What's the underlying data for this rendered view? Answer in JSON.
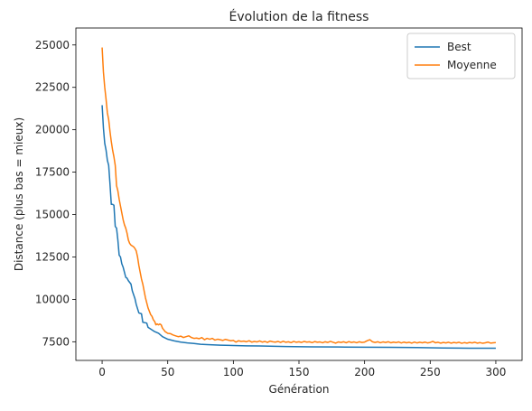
{
  "chart_data": {
    "type": "line",
    "title": "Évolution de la fitness",
    "xlabel": "Génération",
    "ylabel": "Distance (plus bas = mieux)",
    "xlim": [
      -20,
      320
    ],
    "ylim": [
      6400,
      26000
    ],
    "xticks": [
      0,
      50,
      100,
      150,
      200,
      250,
      300
    ],
    "yticks": [
      7500,
      10000,
      12500,
      15000,
      17500,
      20000,
      22500,
      25000
    ],
    "grid": false,
    "legend_position": "top-right",
    "series": [
      {
        "name": "Best",
        "color": "#1f77b4",
        "points": [
          [
            0,
            21450
          ],
          [
            1,
            20100
          ],
          [
            2,
            19200
          ],
          [
            3,
            18800
          ],
          [
            4,
            18200
          ],
          [
            5,
            17900
          ],
          [
            6,
            16800
          ],
          [
            7,
            15600
          ],
          [
            8,
            15600
          ],
          [
            9,
            15550
          ],
          [
            10,
            14300
          ],
          [
            11,
            14200
          ],
          [
            12,
            13500
          ],
          [
            13,
            12600
          ],
          [
            14,
            12500
          ],
          [
            15,
            12100
          ],
          [
            16,
            11900
          ],
          [
            17,
            11600
          ],
          [
            18,
            11300
          ],
          [
            19,
            11250
          ],
          [
            20,
            11100
          ],
          [
            22,
            10900
          ],
          [
            23,
            10500
          ],
          [
            25,
            10050
          ],
          [
            26,
            9700
          ],
          [
            28,
            9200
          ],
          [
            30,
            9150
          ],
          [
            31,
            8650
          ],
          [
            34,
            8600
          ],
          [
            35,
            8350
          ],
          [
            37,
            8250
          ],
          [
            40,
            8100
          ],
          [
            43,
            8000
          ],
          [
            46,
            7800
          ],
          [
            50,
            7650
          ],
          [
            55,
            7550
          ],
          [
            60,
            7480
          ],
          [
            65,
            7430
          ],
          [
            70,
            7400
          ],
          [
            75,
            7350
          ],
          [
            80,
            7330
          ],
          [
            90,
            7300
          ],
          [
            100,
            7280
          ],
          [
            110,
            7260
          ],
          [
            120,
            7250
          ],
          [
            140,
            7220
          ],
          [
            160,
            7200
          ],
          [
            180,
            7190
          ],
          [
            200,
            7180
          ],
          [
            220,
            7170
          ],
          [
            240,
            7160
          ],
          [
            260,
            7130
          ],
          [
            280,
            7120
          ],
          [
            300,
            7120
          ]
        ]
      },
      {
        "name": "Moyenne",
        "color": "#ff7f0e",
        "points": [
          [
            0,
            24850
          ],
          [
            1,
            23400
          ],
          [
            2,
            22500
          ],
          [
            3,
            21800
          ],
          [
            4,
            21000
          ],
          [
            5,
            20600
          ],
          [
            6,
            19900
          ],
          [
            7,
            19300
          ],
          [
            8,
            18800
          ],
          [
            9,
            18400
          ],
          [
            10,
            17900
          ],
          [
            11,
            16700
          ],
          [
            12,
            16400
          ],
          [
            13,
            15900
          ],
          [
            14,
            15500
          ],
          [
            15,
            15100
          ],
          [
            16,
            14700
          ],
          [
            17,
            14400
          ],
          [
            18,
            14200
          ],
          [
            19,
            13900
          ],
          [
            20,
            13500
          ],
          [
            21,
            13300
          ],
          [
            22,
            13200
          ],
          [
            23,
            13150
          ],
          [
            24,
            13100
          ],
          [
            25,
            13000
          ],
          [
            26,
            12850
          ],
          [
            27,
            12500
          ],
          [
            28,
            12000
          ],
          [
            29,
            11600
          ],
          [
            30,
            11200
          ],
          [
            31,
            10900
          ],
          [
            32,
            10500
          ],
          [
            33,
            10100
          ],
          [
            34,
            9800
          ],
          [
            35,
            9500
          ],
          [
            36,
            9300
          ],
          [
            37,
            9100
          ],
          [
            38,
            9000
          ],
          [
            39,
            8800
          ],
          [
            40,
            8700
          ],
          [
            41,
            8500
          ],
          [
            42,
            8550
          ],
          [
            43,
            8500
          ],
          [
            44,
            8550
          ],
          [
            45,
            8500
          ],
          [
            46,
            8300
          ],
          [
            47,
            8200
          ],
          [
            48,
            8100
          ],
          [
            49,
            8050
          ],
          [
            50,
            8000
          ],
          [
            52,
            7980
          ],
          [
            54,
            7900
          ],
          [
            56,
            7850
          ],
          [
            58,
            7800
          ],
          [
            60,
            7830
          ],
          [
            62,
            7750
          ],
          [
            64,
            7800
          ],
          [
            66,
            7850
          ],
          [
            68,
            7750
          ],
          [
            70,
            7700
          ],
          [
            72,
            7720
          ],
          [
            74,
            7680
          ],
          [
            76,
            7750
          ],
          [
            78,
            7620
          ],
          [
            80,
            7700
          ],
          [
            82,
            7650
          ],
          [
            84,
            7700
          ],
          [
            86,
            7600
          ],
          [
            88,
            7650
          ],
          [
            90,
            7620
          ],
          [
            92,
            7580
          ],
          [
            94,
            7640
          ],
          [
            96,
            7600
          ],
          [
            98,
            7560
          ],
          [
            100,
            7580
          ],
          [
            102,
            7480
          ],
          [
            104,
            7560
          ],
          [
            106,
            7520
          ],
          [
            108,
            7540
          ],
          [
            110,
            7500
          ],
          [
            112,
            7560
          ],
          [
            114,
            7480
          ],
          [
            116,
            7520
          ],
          [
            118,
            7490
          ],
          [
            120,
            7550
          ],
          [
            122,
            7480
          ],
          [
            124,
            7520
          ],
          [
            126,
            7460
          ],
          [
            128,
            7540
          ],
          [
            130,
            7500
          ],
          [
            132,
            7480
          ],
          [
            134,
            7520
          ],
          [
            136,
            7460
          ],
          [
            138,
            7530
          ],
          [
            140,
            7470
          ],
          [
            142,
            7500
          ],
          [
            144,
            7450
          ],
          [
            146,
            7520
          ],
          [
            148,
            7470
          ],
          [
            150,
            7500
          ],
          [
            152,
            7460
          ],
          [
            154,
            7520
          ],
          [
            156,
            7480
          ],
          [
            158,
            7500
          ],
          [
            160,
            7450
          ],
          [
            162,
            7510
          ],
          [
            164,
            7470
          ],
          [
            166,
            7490
          ],
          [
            168,
            7440
          ],
          [
            170,
            7500
          ],
          [
            172,
            7460
          ],
          [
            174,
            7520
          ],
          [
            176,
            7470
          ],
          [
            178,
            7420
          ],
          [
            180,
            7490
          ],
          [
            182,
            7460
          ],
          [
            184,
            7500
          ],
          [
            186,
            7440
          ],
          [
            188,
            7510
          ],
          [
            190,
            7460
          ],
          [
            192,
            7490
          ],
          [
            194,
            7440
          ],
          [
            196,
            7500
          ],
          [
            198,
            7460
          ],
          [
            200,
            7480
          ],
          [
            202,
            7560
          ],
          [
            204,
            7620
          ],
          [
            206,
            7500
          ],
          [
            208,
            7460
          ],
          [
            210,
            7500
          ],
          [
            212,
            7440
          ],
          [
            214,
            7490
          ],
          [
            216,
            7460
          ],
          [
            218,
            7500
          ],
          [
            220,
            7440
          ],
          [
            222,
            7480
          ],
          [
            224,
            7450
          ],
          [
            226,
            7490
          ],
          [
            228,
            7430
          ],
          [
            230,
            7480
          ],
          [
            232,
            7440
          ],
          [
            234,
            7470
          ],
          [
            236,
            7420
          ],
          [
            238,
            7480
          ],
          [
            240,
            7430
          ],
          [
            242,
            7470
          ],
          [
            244,
            7440
          ],
          [
            246,
            7480
          ],
          [
            248,
            7430
          ],
          [
            250,
            7460
          ],
          [
            252,
            7520
          ],
          [
            254,
            7440
          ],
          [
            256,
            7470
          ],
          [
            258,
            7420
          ],
          [
            260,
            7460
          ],
          [
            262,
            7430
          ],
          [
            264,
            7470
          ],
          [
            266,
            7420
          ],
          [
            268,
            7460
          ],
          [
            270,
            7430
          ],
          [
            272,
            7470
          ],
          [
            274,
            7410
          ],
          [
            276,
            7450
          ],
          [
            278,
            7420
          ],
          [
            280,
            7460
          ],
          [
            282,
            7430
          ],
          [
            284,
            7470
          ],
          [
            286,
            7420
          ],
          [
            288,
            7450
          ],
          [
            290,
            7410
          ],
          [
            292,
            7440
          ],
          [
            294,
            7480
          ],
          [
            296,
            7420
          ],
          [
            298,
            7440
          ],
          [
            300,
            7450
          ]
        ]
      }
    ]
  }
}
